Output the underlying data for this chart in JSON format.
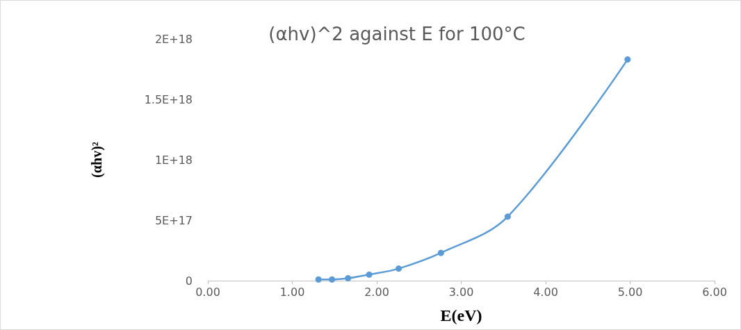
{
  "chart_data": {
    "type": "line",
    "title": "(αhv)^2 against E for 100°C",
    "xlabel": "E(eV)",
    "ylabel": "(αhv)²",
    "x": [
      1.31,
      1.47,
      1.66,
      1.91,
      2.26,
      2.76,
      3.55,
      4.97
    ],
    "series": [
      {
        "color": "#5b9bd5",
        "values": [
          1e+16,
          1e+16,
          2e+16,
          5e+16,
          1e+17,
          2.3e+17,
          5.3e+17,
          1.83e+18
        ]
      }
    ],
    "xlim": [
      0,
      6
    ],
    "xticks": [
      {
        "value": 0,
        "label": "0.00"
      },
      {
        "value": 1,
        "label": "1.00"
      },
      {
        "value": 2,
        "label": "2.00"
      },
      {
        "value": 3,
        "label": "3.00"
      },
      {
        "value": 4,
        "label": "4.00"
      },
      {
        "value": 5,
        "label": "5.00"
      },
      {
        "value": 6,
        "label": "6.00"
      }
    ],
    "ylim": [
      0,
      2e+18
    ],
    "yticks": [
      0,
      {
        "value": 5e+17,
        "label": "5E+17"
      },
      {
        "value": 1e+18,
        "label": "1E+18"
      },
      {
        "value": 1.5e+18,
        "label": "1.5E+18"
      },
      {
        "value": 2e+18,
        "label": "2E+18"
      }
    ],
    "grid": false,
    "marker": "circle",
    "line_style": "solid"
  }
}
